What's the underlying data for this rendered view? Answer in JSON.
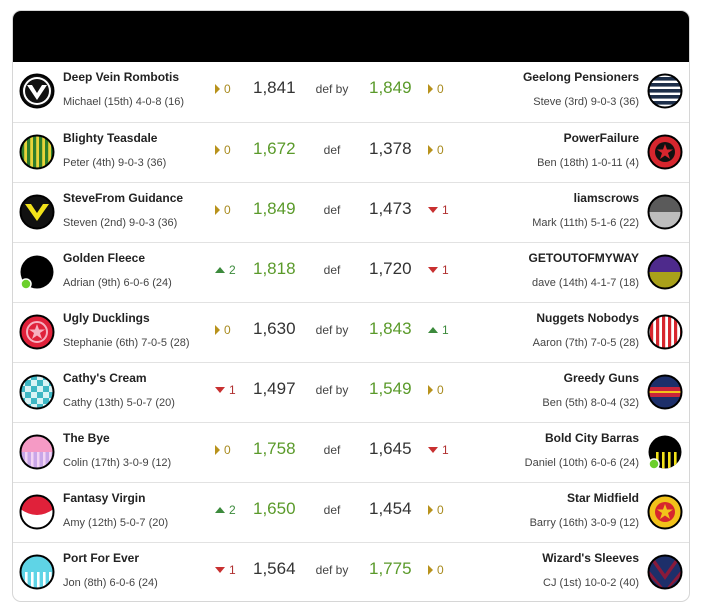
{
  "header": {
    "title": ""
  },
  "colors": {
    "win": "#5a9a2a",
    "neutral": "#b8921c",
    "up": "#3c8a3c",
    "down": "#c83030"
  },
  "matches": [
    {
      "home": {
        "name": "Deep Vein Rombotis",
        "sub": "Michael (15th) 4-0-8 (16)",
        "chg": "0",
        "dir": "neutral",
        "score": "1,841",
        "win": false,
        "logo": "black-white-v-badge"
      },
      "result": "def by",
      "away": {
        "name": "Geelong Pensioners",
        "sub": "Steve (3rd) 9-0-3 (36)",
        "chg": "0",
        "dir": "neutral",
        "score": "1,849",
        "win": true,
        "logo": "navy-white-hoops"
      }
    },
    {
      "home": {
        "name": "Blighty Teasdale",
        "sub": "Peter (4th) 9-0-3 (36)",
        "chg": "0",
        "dir": "neutral",
        "score": "1,672",
        "win": true,
        "logo": "green-gold-stripes"
      },
      "result": "def",
      "away": {
        "name": "PowerFailure",
        "sub": "Ben (18th) 1-0-11 (4)",
        "chg": "0",
        "dir": "neutral",
        "score": "1,378",
        "win": false,
        "logo": "red-black-star"
      }
    },
    {
      "home": {
        "name": "SteveFrom Guidance",
        "sub": "Steven (2nd) 9-0-3 (36)",
        "chg": "0",
        "dir": "neutral",
        "score": "1,849",
        "win": true,
        "logo": "black-yellow-v"
      },
      "result": "def",
      "away": {
        "name": "liamscrows",
        "sub": "Mark (11th) 5-1-6 (22)",
        "chg": "1",
        "dir": "down",
        "score": "1,473",
        "win": false,
        "logo": "grey-halves"
      }
    },
    {
      "home": {
        "name": "Golden Fleece",
        "sub": "Adrian (9th) 6-0-6 (24)",
        "chg": "2",
        "dir": "up",
        "score": "1,818",
        "win": true,
        "logo": "black-plain-online"
      },
      "result": "def",
      "away": {
        "name": "GETOUTOFMYWAY",
        "sub": "dave (14th) 4-1-7 (18)",
        "chg": "1",
        "dir": "down",
        "score": "1,720",
        "win": false,
        "logo": "purple-olive-halves"
      }
    },
    {
      "home": {
        "name": "Ugly Ducklings",
        "sub": "Stephanie (6th) 7-0-5 (28)",
        "chg": "0",
        "dir": "neutral",
        "score": "1,630",
        "win": false,
        "logo": "red-pink-star"
      },
      "result": "def by",
      "away": {
        "name": "Nuggets Nobodys",
        "sub": "Aaron (7th) 7-0-5 (28)",
        "chg": "1",
        "dir": "up",
        "score": "1,843",
        "win": true,
        "logo": "red-white-stripes"
      }
    },
    {
      "home": {
        "name": "Cathy's Cream",
        "sub": "Cathy (13th) 5-0-7 (20)",
        "chg": "1",
        "dir": "down",
        "score": "1,497",
        "win": false,
        "logo": "teal-checks"
      },
      "result": "def by",
      "away": {
        "name": "Greedy Guns",
        "sub": "Ben (5th) 8-0-4 (32)",
        "chg": "0",
        "dir": "neutral",
        "score": "1,549",
        "win": true,
        "logo": "navy-red-gold-hoops"
      }
    },
    {
      "home": {
        "name": "The Bye",
        "sub": "Colin (17th) 3-0-9 (12)",
        "chg": "0",
        "dir": "neutral",
        "score": "1,758",
        "win": true,
        "logo": "pink-lilac-stripes"
      },
      "result": "def",
      "away": {
        "name": "Bold City Barras",
        "sub": "Daniel (10th) 6-0-6 (24)",
        "chg": "1",
        "dir": "down",
        "score": "1,645",
        "win": false,
        "logo": "black-yellow-stripes-online"
      }
    },
    {
      "home": {
        "name": "Fantasy Virgin",
        "sub": "Amy (12th) 5-0-7 (20)",
        "chg": "2",
        "dir": "up",
        "score": "1,650",
        "win": true,
        "logo": "red-white-halves"
      },
      "result": "def",
      "away": {
        "name": "Star Midfield",
        "sub": "Barry (16th) 3-0-9 (12)",
        "chg": "0",
        "dir": "neutral",
        "score": "1,454",
        "win": false,
        "logo": "yellow-red-star"
      }
    },
    {
      "home": {
        "name": "Port For Ever",
        "sub": "Jon (8th) 6-0-6 (24)",
        "chg": "1",
        "dir": "down",
        "score": "1,564",
        "win": false,
        "logo": "cyan-white-stripes"
      },
      "result": "def by",
      "away": {
        "name": "Wizard's Sleeves",
        "sub": "CJ (1st) 10-0-2 (40)",
        "chg": "0",
        "dir": "neutral",
        "score": "1,775",
        "win": true,
        "logo": "maroon-navy-chevron"
      }
    }
  ]
}
